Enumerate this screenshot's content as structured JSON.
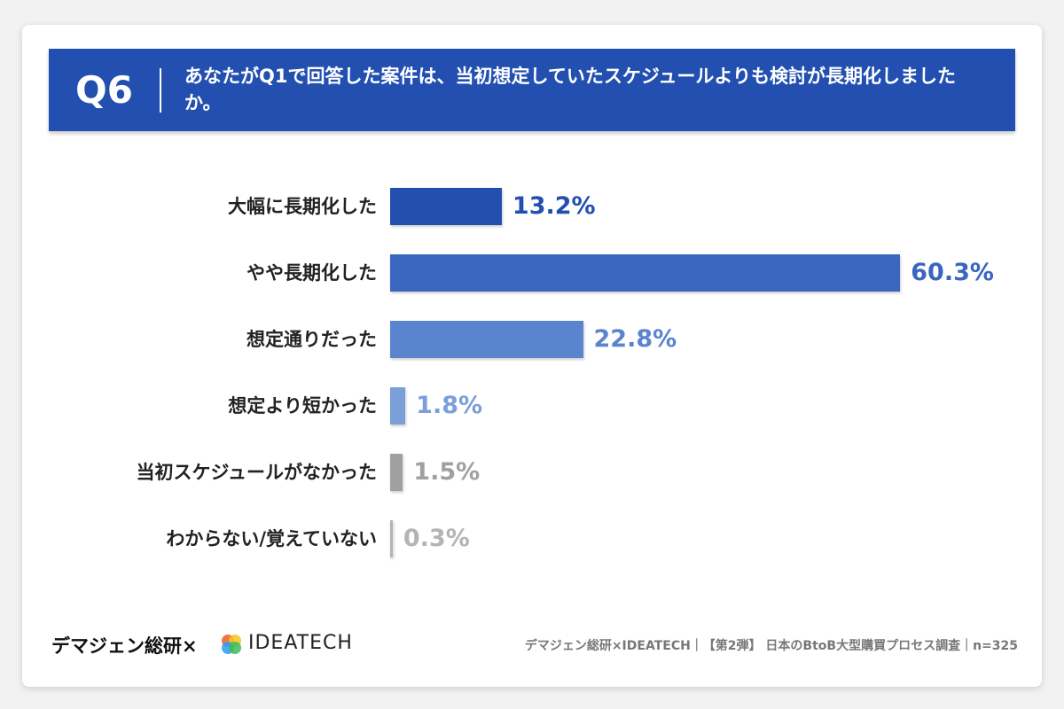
{
  "chart_data": {
    "type": "bar",
    "badge": "Q6",
    "title": "あなたがQ1で回答した案件は、当初想定していたスケジュールよりも検討が長期化しましたか。",
    "categories": [
      "大幅に長期化した",
      "やや長期化した",
      "想定通りだった",
      "想定より短かった",
      "当初スケジュールがなかった",
      "わからない/覚えていない"
    ],
    "values": [
      13.2,
      60.3,
      22.8,
      1.8,
      1.5,
      0.3
    ],
    "value_labels": [
      "13.2%",
      "60.3%",
      "22.8%",
      "1.8%",
      "1.5%",
      "0.3%"
    ],
    "colors": [
      "#2350b0",
      "#3a66c0",
      "#5b84cf",
      "#7a9fd9",
      "#a0a0a0",
      "#b4b4b4"
    ],
    "logo_text": "デマジェン総研×",
    "logo_brand": "IDEATECH",
    "source": "デマジェン総研×IDEATECH｜【第2弾】 日本のBtoB大型購買プロセス調査｜n=325"
  }
}
